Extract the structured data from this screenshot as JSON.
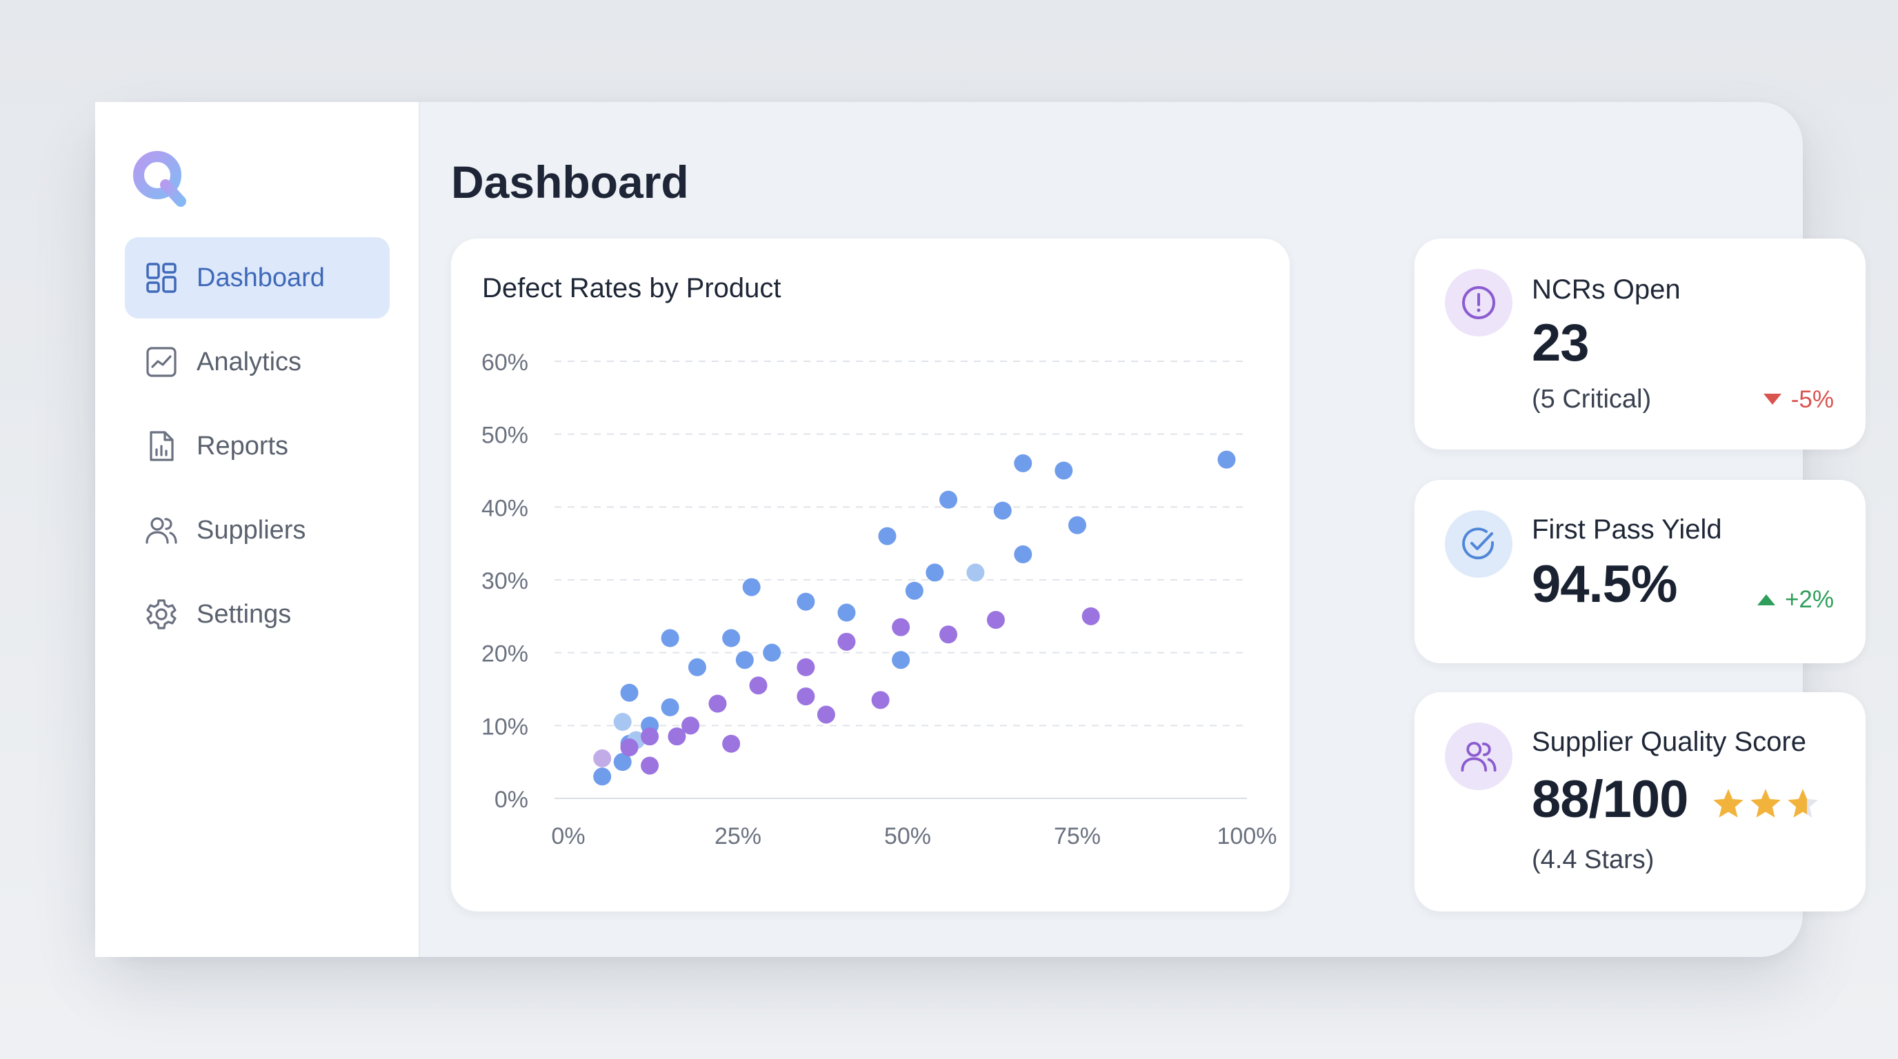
{
  "app": {
    "page_title": "Dashboard",
    "accent": "#3f69b8",
    "active_bg": "#dde8fb"
  },
  "sidebar": {
    "items": [
      {
        "label": "Dashboard",
        "icon": "grid-icon",
        "active": true
      },
      {
        "label": "Analytics",
        "icon": "line-chart-icon",
        "active": false
      },
      {
        "label": "Reports",
        "icon": "report-file-icon",
        "active": false
      },
      {
        "label": "Suppliers",
        "icon": "users-icon",
        "active": false
      },
      {
        "label": "Settings",
        "icon": "gear-icon",
        "active": false
      }
    ]
  },
  "chart": {
    "title": "Defect Rates by Product"
  },
  "chart_data": {
    "type": "scatter",
    "title": "Defect Rates by Product",
    "xlabel": "",
    "ylabel": "",
    "xlim": [
      0,
      100
    ],
    "ylim": [
      0,
      60
    ],
    "x_ticks": [
      "0%",
      "25%",
      "50%",
      "75%",
      "100%"
    ],
    "y_ticks": [
      "0%",
      "10%",
      "20%",
      "30%",
      "40%",
      "50%",
      "60%"
    ],
    "grid": true,
    "series": [
      {
        "color": "#6f9ceb",
        "points": [
          [
            5,
            3
          ],
          [
            8,
            5
          ],
          [
            9,
            7.5
          ],
          [
            9,
            14.5
          ],
          [
            12,
            10
          ],
          [
            15,
            12.5
          ],
          [
            15,
            22
          ],
          [
            19,
            18
          ],
          [
            24,
            22
          ],
          [
            26,
            19
          ],
          [
            27,
            29
          ],
          [
            30,
            20
          ],
          [
            35,
            27
          ],
          [
            41,
            25.5
          ],
          [
            47,
            36
          ],
          [
            49,
            19
          ],
          [
            51,
            28.5
          ],
          [
            54,
            31
          ],
          [
            56,
            41
          ],
          [
            64,
            39.5
          ],
          [
            67,
            33.5
          ],
          [
            67,
            46
          ],
          [
            73,
            45
          ],
          [
            75,
            37.5
          ],
          [
            97,
            46.5
          ]
        ]
      },
      {
        "color": "#a8c6f2",
        "points": [
          [
            8,
            10.5
          ],
          [
            10,
            8
          ],
          [
            60,
            31
          ]
        ]
      },
      {
        "color": "#9b74e0",
        "points": [
          [
            9,
            7
          ],
          [
            12,
            4.5
          ],
          [
            12,
            8.5
          ],
          [
            16,
            8.5
          ],
          [
            18,
            10
          ],
          [
            22,
            13
          ],
          [
            24,
            7.5
          ],
          [
            28,
            15.5
          ],
          [
            35,
            18
          ],
          [
            35,
            14
          ],
          [
            38,
            11.5
          ],
          [
            41,
            21.5
          ],
          [
            46,
            13.5
          ],
          [
            49,
            23.5
          ],
          [
            56,
            22.5
          ],
          [
            63,
            24.5
          ],
          [
            77,
            25
          ]
        ]
      },
      {
        "color": "#c2ace8",
        "points": [
          [
            5,
            5.5
          ]
        ]
      }
    ]
  },
  "kpis": {
    "ncrs": {
      "title": "NCRs Open",
      "value": "23",
      "sub": "(5 Critical)",
      "trend": "-5%",
      "trend_direction": "down",
      "trend_color": "#d9534f",
      "icon": "alert-circle-icon"
    },
    "fpy": {
      "title": "First Pass Yield",
      "value": "94.5%",
      "trend": "+2%",
      "trend_direction": "up",
      "trend_color": "#2f9e5a",
      "icon": "check-circle-icon"
    },
    "supplier": {
      "title": "Supplier Quality Score",
      "value": "88/100",
      "sub": "(4.4 Stars)",
      "rating": 4.4,
      "star_color": "#f2b33d",
      "icon": "users-icon"
    }
  }
}
